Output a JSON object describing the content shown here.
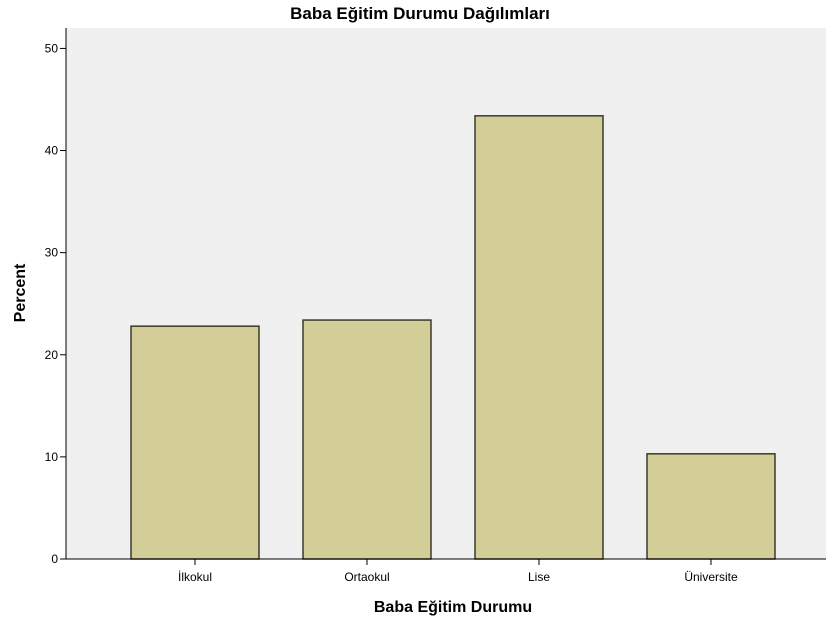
{
  "chart_data": {
    "type": "bar",
    "title": "Baba Eğitim Durumu Dağılımları",
    "xlabel": "Baba Eğitim Durumu",
    "ylabel": "Percent",
    "categories": [
      "İlkokul",
      "Ortaokul",
      "Lise",
      "Üniversite"
    ],
    "values": [
      22.8,
      23.4,
      43.4,
      10.3
    ],
    "ylim": [
      0,
      52
    ],
    "yticks": [
      "0",
      "10",
      "20",
      "30",
      "40",
      "50"
    ],
    "grid": false,
    "legend": "none",
    "colors": {
      "plot_background": "#f0f0f0",
      "bar_fill": "#d3ce97",
      "bar_stroke": "#3a3a2a",
      "axis": "#000000"
    }
  }
}
